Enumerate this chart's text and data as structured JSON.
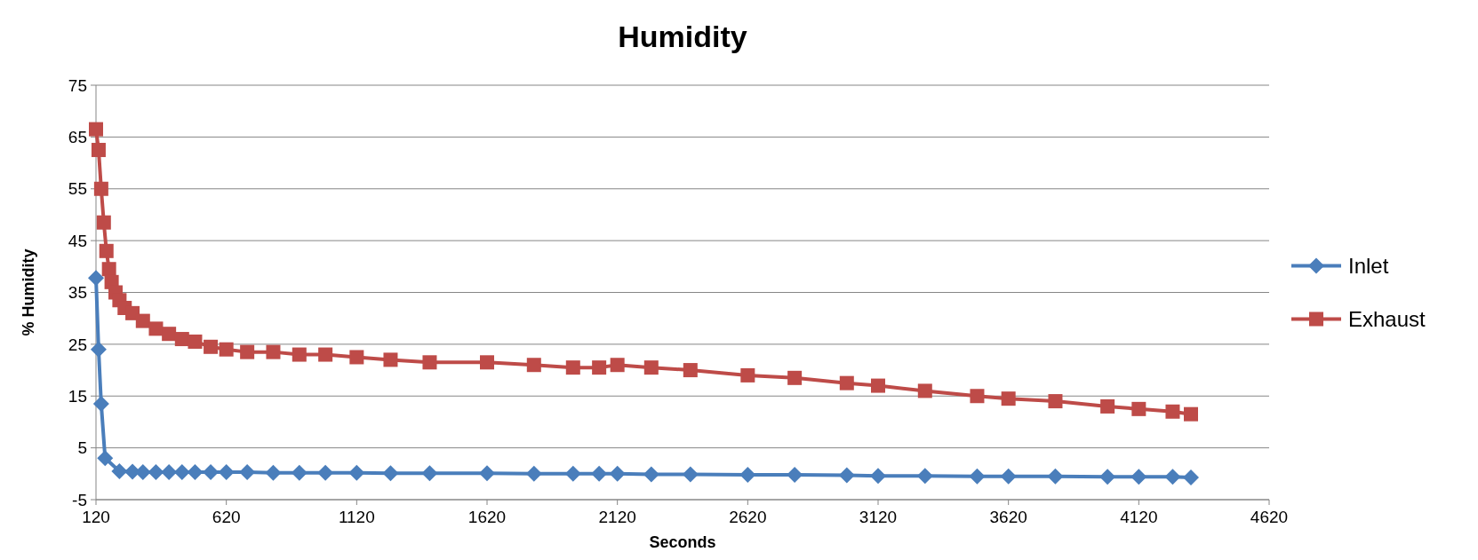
{
  "chart_data": {
    "type": "line",
    "title": "Humidity",
    "xlabel": "Seconds",
    "ylabel": "% Humidity",
    "x": [
      120,
      130,
      140,
      150,
      160,
      170,
      180,
      195,
      210,
      230,
      260,
      300,
      350,
      400,
      450,
      500,
      560,
      620,
      700,
      800,
      900,
      1000,
      1120,
      1250,
      1400,
      1620,
      1800,
      1950,
      2050,
      2120,
      2250,
      2400,
      2620,
      2800,
      3000,
      3120,
      3300,
      3500,
      3620,
      3800,
      4000,
      4120,
      4250,
      4320
    ],
    "series": [
      {
        "name": "Inlet",
        "color": "#4a7ebb",
        "marker": "diamond",
        "x": [
          120,
          130,
          140,
          155,
          210,
          260,
          300,
          350,
          400,
          450,
          500,
          560,
          620,
          700,
          800,
          900,
          1000,
          1120,
          1250,
          1400,
          1620,
          1800,
          1950,
          2050,
          2120,
          2250,
          2400,
          2620,
          2800,
          3000,
          3120,
          3300,
          3500,
          3620,
          3800,
          4000,
          4120,
          4250,
          4320
        ],
        "values": [
          37.8,
          24,
          13.5,
          3,
          0.5,
          0.4,
          0.3,
          0.3,
          0.3,
          0.3,
          0.3,
          0.3,
          0.3,
          0.3,
          0.2,
          0.2,
          0.2,
          0.2,
          0.1,
          0.1,
          0.1,
          0,
          0,
          0,
          0,
          -0.1,
          -0.1,
          -0.2,
          -0.2,
          -0.3,
          -0.4,
          -0.4,
          -0.5,
          -0.5,
          -0.5,
          -0.6,
          -0.6,
          -0.6,
          -0.7
        ]
      },
      {
        "name": "Exhaust",
        "color": "#be4b48",
        "marker": "square",
        "values": [
          66.5,
          62.5,
          55,
          48.5,
          43,
          39.5,
          37,
          35,
          33.5,
          32,
          31,
          29.5,
          28,
          27,
          26,
          25.5,
          24.5,
          24,
          23.5,
          23.5,
          23,
          23,
          22.5,
          22,
          21.5,
          21.5,
          21,
          20.5,
          20.5,
          21,
          20.5,
          20,
          19,
          18.5,
          17.5,
          17,
          16,
          15,
          14.5,
          14,
          13,
          12.5,
          12,
          11.5
        ]
      }
    ],
    "xlim": [
      120,
      4620
    ],
    "xticks": [
      120,
      620,
      1120,
      1620,
      2120,
      2620,
      3120,
      3620,
      4120,
      4620
    ],
    "ylim": [
      -5,
      75
    ],
    "yticks": [
      -5,
      5,
      15,
      25,
      35,
      45,
      55,
      65,
      75
    ],
    "grid": "y",
    "legend": "right"
  }
}
